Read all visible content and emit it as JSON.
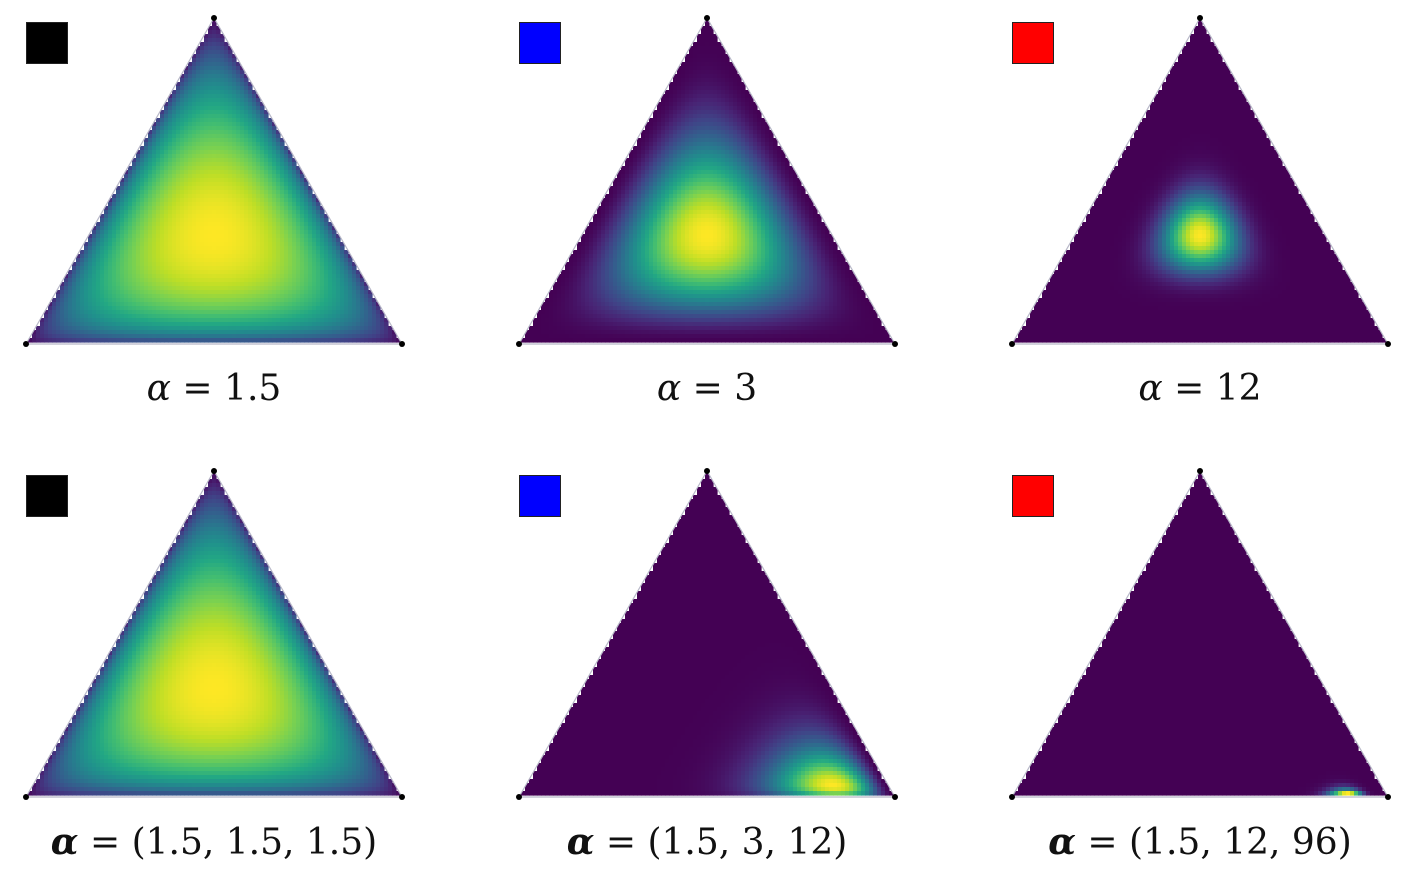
{
  "panels": [
    {
      "id": "p1",
      "swatch_color": "#000000",
      "symbol": "α",
      "bold_symbol": false,
      "value_text": "1.5",
      "alpha": [
        1.5,
        1.5,
        1.5
      ]
    },
    {
      "id": "p2",
      "swatch_color": "#0000ff",
      "symbol": "α",
      "bold_symbol": false,
      "value_text": "3",
      "alpha": [
        3,
        3,
        3
      ]
    },
    {
      "id": "p3",
      "swatch_color": "#ff0000",
      "symbol": "α",
      "bold_symbol": false,
      "value_text": "12",
      "alpha": [
        12,
        12,
        12
      ]
    },
    {
      "id": "p4",
      "swatch_color": "#000000",
      "symbol": "α",
      "bold_symbol": true,
      "value_text": "(1.5, 1.5, 1.5)",
      "alpha": [
        1.5,
        1.5,
        1.5
      ]
    },
    {
      "id": "p5",
      "swatch_color": "#0000ff",
      "symbol": "α",
      "bold_symbol": true,
      "value_text": "(1.5, 3, 12)",
      "alpha": [
        1.5,
        3,
        12
      ]
    },
    {
      "id": "p6",
      "swatch_color": "#ff0000",
      "symbol": "α",
      "bold_symbol": true,
      "value_text": "(1.5, 12, 96)",
      "alpha": [
        1.5,
        12,
        96
      ]
    }
  ],
  "colormap": "viridis"
}
